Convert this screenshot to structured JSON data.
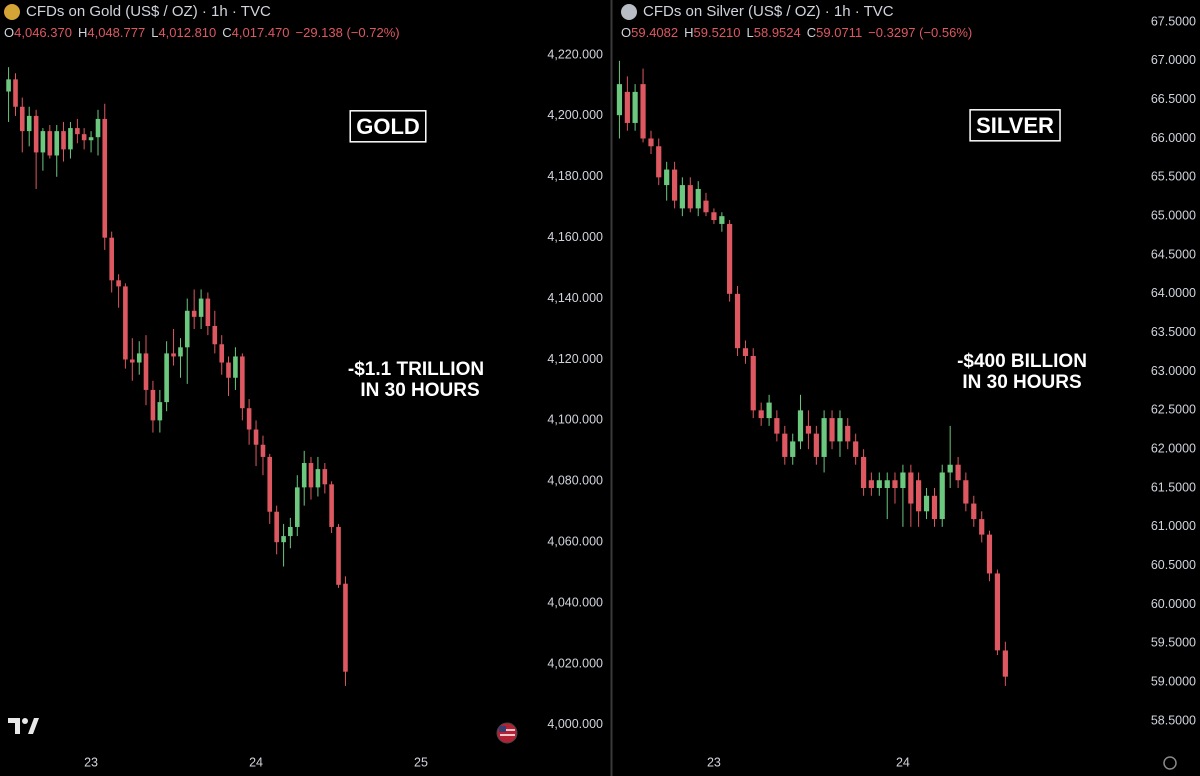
{
  "chart_data": [
    {
      "type": "candlestick",
      "title": "CFDs on Gold (US$ / OZ) · 1h · TVC",
      "legend": [
        {
          "label": "O",
          "value": "4,046.370"
        },
        {
          "label": "H",
          "value": "4,048.777"
        },
        {
          "label": "L",
          "value": "4,012.810"
        },
        {
          "label": "C",
          "value": "4,017.470"
        }
      ],
      "change": "−29.138 (−0.72%)",
      "annotations": [
        "GOLD",
        "-$1.1 TRILLION",
        "IN 30 HOURS"
      ],
      "up_color": "#6cc77f",
      "down_color": "#dd5860",
      "grid": false,
      "xlim": [
        22.448,
        25.6
      ],
      "xticks": [
        23,
        24,
        25
      ],
      "ylim": [
        3991.75,
        4238.06
      ],
      "yticks": [
        {
          "value": 4000,
          "label": "4,000.000"
        },
        {
          "value": 4020,
          "label": "4,020.000"
        },
        {
          "value": 4040,
          "label": "4,040.000"
        },
        {
          "value": 4060,
          "label": "4,060.000"
        },
        {
          "value": 4080,
          "label": "4,080.000"
        },
        {
          "value": 4100,
          "label": "4,100.000"
        },
        {
          "value": 4120,
          "label": "4,120.000"
        },
        {
          "value": 4140,
          "label": "4,140.000"
        },
        {
          "value": 4160,
          "label": "4,160.000"
        },
        {
          "value": 4180,
          "label": "4,180.000"
        },
        {
          "value": 4200,
          "label": "4,200.000"
        },
        {
          "value": 4220,
          "label": "4,220.000"
        }
      ],
      "x": [
        22.5,
        22.542,
        22.583,
        22.625,
        22.667,
        22.708,
        22.75,
        22.792,
        22.833,
        22.875,
        22.917,
        22.958,
        23,
        23.042,
        23.083,
        23.125,
        23.167,
        23.208,
        23.25,
        23.292,
        23.333,
        23.375,
        23.417,
        23.458,
        23.5,
        23.542,
        23.583,
        23.625,
        23.667,
        23.708,
        23.75,
        23.792,
        23.833,
        23.875,
        23.917,
        23.958,
        24,
        24.042,
        24.083,
        24.125,
        24.167,
        24.208,
        24.25,
        24.292,
        24.333,
        24.375,
        24.417,
        24.458,
        24.5,
        24.542
      ],
      "open": [
        4208,
        4212,
        4203,
        4195,
        4200,
        4188,
        4195,
        4187,
        4195,
        4189,
        4196,
        4194,
        4192,
        4193,
        4199,
        4160,
        4146,
        4144,
        4120,
        4119,
        4122,
        4110,
        4100,
        4106,
        4122,
        4121,
        4124,
        4136,
        4134,
        4140,
        4131,
        4125,
        4119,
        4114,
        4121,
        4104,
        4097,
        4092,
        4088,
        4070,
        4060,
        4062,
        4065,
        4078,
        4086,
        4078,
        4084,
        4079,
        4065,
        4046.37
      ],
      "high": [
        4216,
        4214,
        4206,
        4203,
        4202,
        4196,
        4197,
        4197,
        4198,
        4198,
        4199,
        4196,
        4195,
        4202,
        4204,
        4162,
        4148,
        4145,
        4127,
        4126,
        4128,
        4113,
        4110,
        4126,
        4130,
        4127,
        4140,
        4143,
        4143,
        4142,
        4136,
        4128,
        4121,
        4124,
        4122,
        4107,
        4100,
        4095,
        4089,
        4072,
        4066,
        4068,
        4082,
        4090,
        4088,
        4088,
        4086,
        4080,
        4066,
        4048.777
      ],
      "low": [
        4198,
        4200,
        4188,
        4190,
        4176,
        4182,
        4186,
        4180,
        4185,
        4186,
        4191,
        4189,
        4188,
        4187,
        4156,
        4142,
        4137,
        4117,
        4113,
        4115,
        4105,
        4096,
        4096,
        4103,
        4118,
        4114,
        4112,
        4130,
        4130,
        4128,
        4122,
        4115,
        4108,
        4110,
        4100,
        4092,
        4085,
        4082,
        4066,
        4056,
        4052,
        4058,
        4062,
        4072,
        4074,
        4075,
        4076,
        4063,
        4045,
        4012.81
      ],
      "close": [
        4212,
        4203,
        4195,
        4200,
        4188,
        4195,
        4187,
        4195,
        4189,
        4196,
        4194,
        4192,
        4193,
        4199,
        4160,
        4146,
        4144,
        4120,
        4119,
        4122,
        4110,
        4100,
        4106,
        4122,
        4121,
        4124,
        4136,
        4134,
        4140,
        4131,
        4125,
        4119,
        4114,
        4121,
        4104,
        4097,
        4092,
        4088,
        4070,
        4060,
        4062,
        4065,
        4078,
        4086,
        4078,
        4084,
        4079,
        4065,
        4046,
        4017.47
      ]
    },
    {
      "type": "candlestick",
      "title": "CFDs on Silver (US$ / OZ) · 1h · TVC",
      "legend": [
        {
          "label": "O",
          "value": "59.4082"
        },
        {
          "label": "H",
          "value": "59.5210"
        },
        {
          "label": "L",
          "value": "58.9524"
        },
        {
          "label": "C",
          "value": "59.0711"
        }
      ],
      "change": "−0.3297 (−0.56%)",
      "annotations": [
        "SILVER",
        "-$400 BILLION",
        "IN 30 HOURS"
      ],
      "up_color": "#6cc77f",
      "down_color": "#dd5860",
      "grid": false,
      "xlim": [
        22.466,
        25.228
      ],
      "xticks": [
        23,
        24
      ],
      "ylim": [
        58.127,
        67.783
      ],
      "yticks": [
        {
          "value": 58.5,
          "label": "58.5000"
        },
        {
          "value": 59,
          "label": "59.0000"
        },
        {
          "value": 59.5,
          "label": "59.5000"
        },
        {
          "value": 60,
          "label": "60.0000"
        },
        {
          "value": 60.5,
          "label": "60.5000"
        },
        {
          "value": 61,
          "label": "61.0000"
        },
        {
          "value": 61.5,
          "label": "61.5000"
        },
        {
          "value": 62,
          "label": "62.0000"
        },
        {
          "value": 62.5,
          "label": "62.5000"
        },
        {
          "value": 63,
          "label": "63.0000"
        },
        {
          "value": 63.5,
          "label": "63.5000"
        },
        {
          "value": 64,
          "label": "64.0000"
        },
        {
          "value": 64.5,
          "label": "64.5000"
        },
        {
          "value": 65,
          "label": "65.0000"
        },
        {
          "value": 65.5,
          "label": "65.5000"
        },
        {
          "value": 66,
          "label": "66.0000"
        },
        {
          "value": 66.5,
          "label": "66.5000"
        },
        {
          "value": 67,
          "label": "67.0000"
        },
        {
          "value": 67.5,
          "label": "67.5000"
        }
      ],
      "x": [
        22.5,
        22.542,
        22.583,
        22.625,
        22.667,
        22.708,
        22.75,
        22.792,
        22.833,
        22.875,
        22.917,
        22.958,
        23,
        23.042,
        23.083,
        23.125,
        23.167,
        23.208,
        23.25,
        23.292,
        23.333,
        23.375,
        23.417,
        23.458,
        23.5,
        23.542,
        23.583,
        23.625,
        23.667,
        23.708,
        23.75,
        23.792,
        23.833,
        23.875,
        23.917,
        23.958,
        24,
        24.042,
        24.083,
        24.125,
        24.167,
        24.208,
        24.25,
        24.292,
        24.333,
        24.375,
        24.417,
        24.458,
        24.5,
        24.542
      ],
      "open": [
        66.3,
        66.6,
        66.2,
        66.7,
        66.0,
        65.9,
        65.4,
        65.6,
        65.1,
        65.4,
        65.1,
        65.2,
        65.05,
        64.9,
        64.9,
        64.0,
        63.3,
        63.2,
        62.5,
        62.4,
        62.4,
        62.2,
        61.9,
        62.1,
        62.3,
        62.2,
        61.9,
        62.4,
        62.1,
        62.3,
        62.1,
        61.9,
        61.6,
        61.5,
        61.5,
        61.6,
        61.5,
        61.7,
        61.6,
        61.2,
        61.4,
        61.1,
        61.7,
        61.8,
        61.6,
        61.3,
        61.1,
        60.9,
        60.4,
        59.4082
      ],
      "high": [
        67.0,
        66.8,
        66.7,
        66.9,
        66.1,
        66.0,
        65.7,
        65.7,
        65.5,
        65.5,
        65.45,
        65.3,
        65.1,
        65.05,
        64.95,
        64.1,
        63.4,
        63.3,
        62.6,
        62.7,
        62.5,
        62.3,
        62.2,
        62.7,
        62.5,
        62.3,
        62.5,
        62.5,
        62.5,
        62.4,
        62.2,
        62.0,
        61.7,
        61.7,
        61.7,
        61.7,
        61.8,
        61.8,
        61.7,
        61.5,
        61.5,
        61.8,
        62.3,
        61.9,
        61.7,
        61.4,
        61.2,
        60.95,
        60.45,
        59.521
      ],
      "low": [
        66.0,
        66.1,
        66.1,
        65.95,
        65.8,
        65.4,
        65.2,
        65.1,
        65.0,
        65.05,
        65.0,
        65.0,
        64.9,
        64.8,
        63.9,
        63.2,
        63.1,
        62.4,
        62.3,
        62.3,
        62.1,
        61.8,
        61.8,
        62.0,
        62.0,
        61.8,
        61.7,
        62.0,
        61.9,
        62.0,
        61.8,
        61.4,
        61.4,
        61.4,
        61.1,
        61.3,
        61.0,
        61.0,
        61.0,
        61.1,
        61.0,
        61.0,
        61.5,
        61.5,
        61.2,
        61.0,
        60.8,
        60.3,
        59.35,
        58.9524
      ],
      "close": [
        66.7,
        66.2,
        66.6,
        66.0,
        65.9,
        65.5,
        65.6,
        65.2,
        65.4,
        65.1,
        65.35,
        65.05,
        64.95,
        65.0,
        64.0,
        63.3,
        63.2,
        62.5,
        62.4,
        62.6,
        62.2,
        61.9,
        62.1,
        62.5,
        62.2,
        61.9,
        62.4,
        62.1,
        62.4,
        62.1,
        61.9,
        61.5,
        61.5,
        61.6,
        61.6,
        61.5,
        61.7,
        61.3,
        61.2,
        61.4,
        61.1,
        61.7,
        61.8,
        61.6,
        61.3,
        61.1,
        60.9,
        60.4,
        59.41,
        59.0711
      ]
    }
  ]
}
